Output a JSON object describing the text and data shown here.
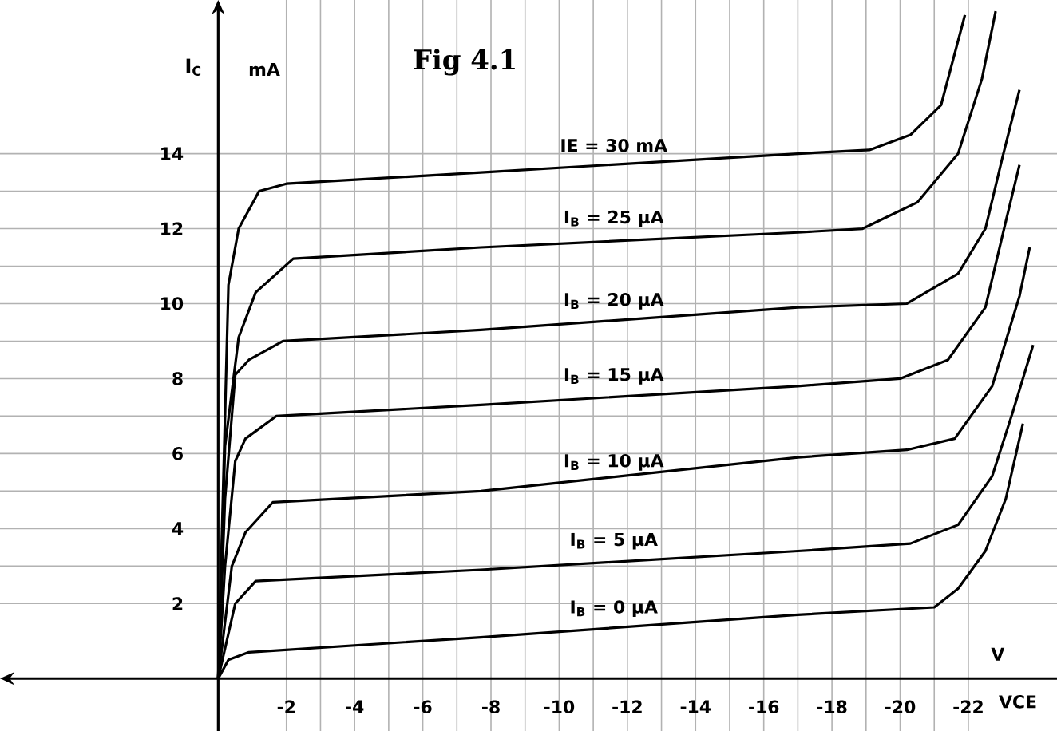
{
  "chart_data": {
    "type": "line",
    "title": "Fig 4.1",
    "xlabel": "VCE",
    "ylabel": "I$_{C}$",
    "annotations": [
      "mA",
      "V"
    ],
    "xlim": [
      6.4,
      -24.6
    ],
    "ylim": [
      -1.4,
      18.1
    ],
    "xticks": [
      -2,
      -4,
      -6,
      -8,
      -10,
      -12,
      -14,
      -16,
      -18,
      -20,
      -22
    ],
    "yticks": [
      2,
      4,
      6,
      8,
      10,
      12,
      14
    ],
    "grid": true,
    "marker": "none",
    "line_style": "solid",
    "series": [
      {
        "name": "IE = 30 mA",
        "color": "#000000",
        "x": [
          0,
          -0.3,
          -0.6,
          -1.2,
          -2,
          -7.7,
          -17,
          -19.1,
          -20.3,
          -21.2,
          -21.9
        ],
        "values": [
          0,
          10.5,
          12.0,
          13.0,
          13.2,
          13.5,
          14.0,
          14.1,
          14.5,
          15.3,
          17.7
        ]
      },
      {
        "name": "I$_{B}$ = 25 µA",
        "color": "#000000",
        "x": [
          0,
          -0.2,
          -0.6,
          -1.1,
          -2.2,
          -7.7,
          -17,
          -18.9,
          -20.5,
          -21.7,
          -22.4,
          -22.8
        ],
        "values": [
          0,
          6.2,
          9.1,
          10.3,
          11.2,
          11.5,
          11.9,
          12.0,
          12.7,
          14.0,
          16.0,
          17.8
        ]
      },
      {
        "name": "I$_{B}$ = 20 µA",
        "color": "#000000",
        "x": [
          0,
          -0.2,
          -0.5,
          -0.9,
          -1.9,
          -7.7,
          -17,
          -20.2,
          -21.7,
          -22.5,
          -23.0,
          -23.5
        ],
        "values": [
          0,
          4.8,
          8.1,
          8.5,
          9.0,
          9.3,
          9.9,
          10.0,
          10.8,
          12.0,
          13.9,
          15.7
        ]
      },
      {
        "name": "I$_{B}$ = 15 µA",
        "color": "#000000",
        "x": [
          0,
          -0.2,
          -0.5,
          -0.8,
          -1.7,
          -7.7,
          -17,
          -20,
          -21.4,
          -22.5,
          -23.1,
          -23.5
        ],
        "values": [
          0,
          3.0,
          5.8,
          6.4,
          7.0,
          7.3,
          7.8,
          8.0,
          8.5,
          9.9,
          12.2,
          13.7
        ]
      },
      {
        "name": "I$_{B}$ = 10 µA",
        "color": "#000000",
        "x": [
          0,
          -0.4,
          -0.8,
          -1.6,
          -7.7,
          -17,
          -20.2,
          -21.6,
          -22.7,
          -23.5,
          -23.8
        ],
        "values": [
          0,
          3.0,
          3.9,
          4.7,
          5.0,
          5.9,
          6.1,
          6.4,
          7.8,
          10.2,
          11.5
        ]
      },
      {
        "name": "I$_{B}$ = 5 µA",
        "color": "#000000",
        "x": [
          0,
          -0.5,
          -1.1,
          -7.7,
          -17,
          -20.3,
          -21.7,
          -22.7,
          -23.3,
          -23.9
        ],
        "values": [
          0,
          2.0,
          2.6,
          2.9,
          3.4,
          3.6,
          4.1,
          5.4,
          7.1,
          8.9
        ]
      },
      {
        "name": "I$_{B}$ = 0 µA",
        "color": "#000000",
        "x": [
          0,
          -0.3,
          -0.9,
          -7.7,
          -17,
          -21.0,
          -21.7,
          -22.5,
          -23.1,
          -23.6
        ],
        "values": [
          0,
          0.5,
          0.7,
          1.1,
          1.7,
          1.9,
          2.4,
          3.4,
          4.8,
          6.8
        ]
      }
    ]
  }
}
